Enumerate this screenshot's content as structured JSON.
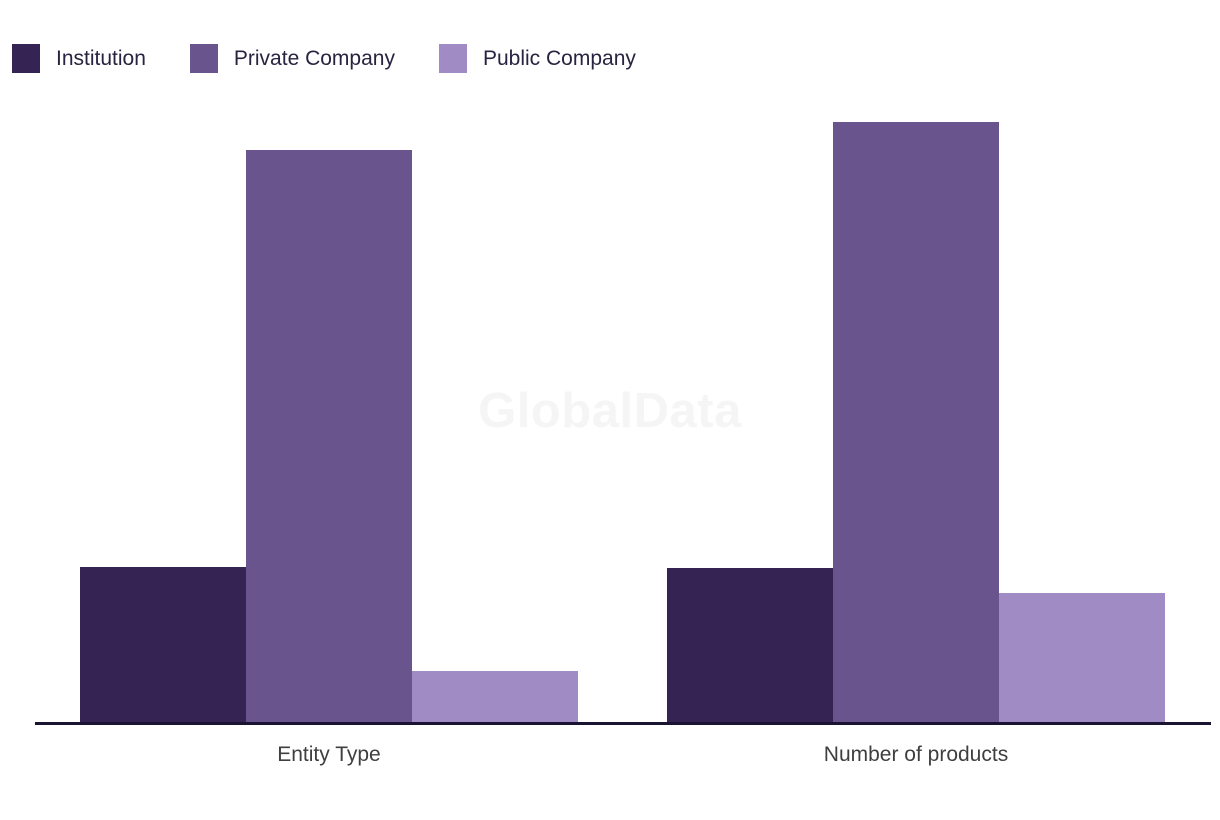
{
  "watermark": "GlobalData",
  "colors": {
    "background": "#ffffff",
    "axis_line": "#1a1433",
    "axis_label": "#3f3f3f",
    "legend_text": "#282440",
    "watermark_text": "#f5f5f5"
  },
  "legend": {
    "position": "top-left",
    "items": [
      {
        "label": "Institution",
        "color": "#352453"
      },
      {
        "label": "Private Company",
        "color": "#6a548e"
      },
      {
        "label": "Public Company",
        "color": "#a08bc4"
      }
    ]
  },
  "chart_data": {
    "type": "bar",
    "title": "",
    "categories": [
      "Entity Type",
      "Number of products"
    ],
    "series": [
      {
        "name": "Institution",
        "color": "#352453",
        "values": [
          155,
          154
        ]
      },
      {
        "name": "Private Company",
        "color": "#6a548e",
        "values": [
          572,
          600
        ]
      },
      {
        "name": "Public Company",
        "color": "#a08bc4",
        "values": [
          51,
          129
        ]
      }
    ],
    "ylim": [
      0,
      600
    ],
    "value_axis_visible": false,
    "value_note": "y-axis not shown in chart; values are estimated relative bar heights",
    "grid": false,
    "legend_position": "top-left",
    "watermark": "GlobalData"
  }
}
